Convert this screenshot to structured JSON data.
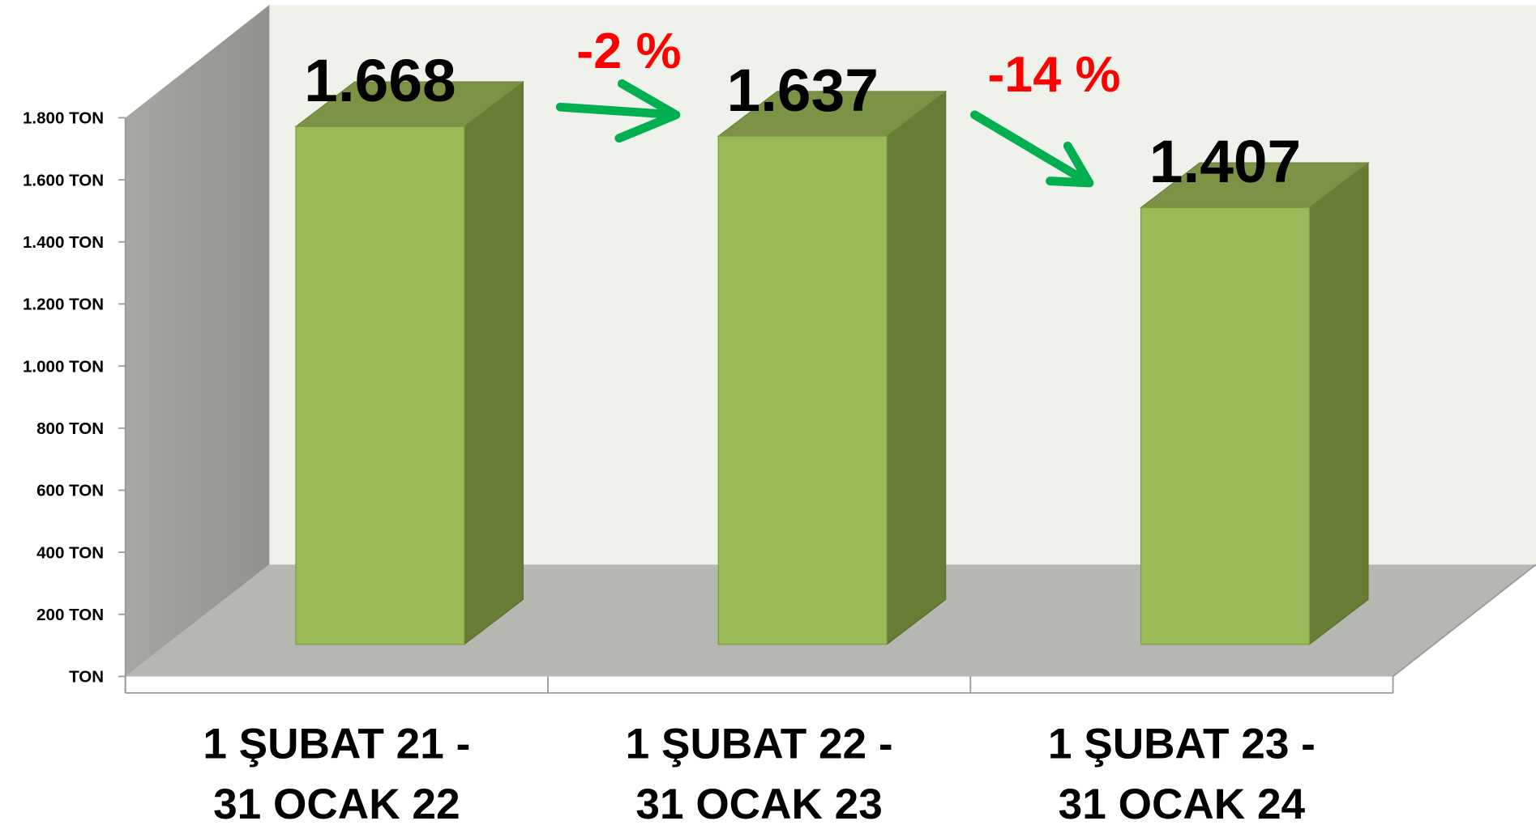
{
  "chart_data": {
    "type": "bar3d",
    "categories": [
      "1 ŞUBAT 21 - 31 OCAK 22",
      "1 ŞUBAT 22 - 31 OCAK 23",
      "1 ŞUBAT 23 - 31 OCAK 24"
    ],
    "values": [
      1668,
      1637,
      1407
    ],
    "value_labels": [
      "1.668",
      "1.637",
      "1.407"
    ],
    "color": "#9bbb59",
    "ylim": [
      0,
      1800
    ],
    "yticks": [
      {
        "value": 0,
        "label": "TON"
      },
      {
        "value": 200,
        "label": "200 TON"
      },
      {
        "value": 400,
        "label": "400 TON"
      },
      {
        "value": 600,
        "label": "600 TON"
      },
      {
        "value": 800,
        "label": "800 TON"
      },
      {
        "value": 1000,
        "label": "1.000 TON"
      },
      {
        "value": 1200,
        "label": "1.200 TON"
      },
      {
        "value": 1400,
        "label": "1.400 TON"
      },
      {
        "value": 1600,
        "label": "1.600 TON"
      },
      {
        "value": 1800,
        "label": "1.800 TON"
      }
    ],
    "annotations": [
      "-2 %",
      "-14 %"
    ],
    "grid": false
  }
}
